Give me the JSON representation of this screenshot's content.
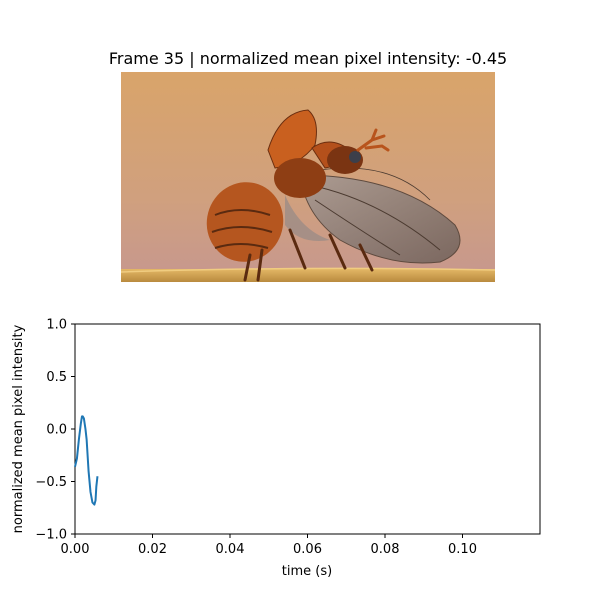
{
  "figure": {
    "title": "Frame 35 | normalized mean pixel intensity: -0.45"
  },
  "photo": {
    "subject": "beetle taking off, wings spread, on a wooden ledge",
    "colors": {
      "sky_top": "#d7a26a",
      "sky_bottom": "#c99a8f",
      "ledge": "#d7aa55",
      "shell": "#b5561f",
      "shell_dark": "#5a2a10",
      "wing": "#8c7e76"
    }
  },
  "chart_data": {
    "type": "line",
    "xlabel": "time (s)",
    "ylabel": "normalized mean pixel intensity",
    "xlim": [
      0,
      0.12
    ],
    "ylim": [
      -1.0,
      1.0
    ],
    "x_ticks": [
      0.0,
      0.02,
      0.04,
      0.06,
      0.08,
      0.1
    ],
    "x_tick_labels": [
      "0.00",
      "0.02",
      "0.04",
      "0.06",
      "0.08",
      "0.10"
    ],
    "y_ticks": [
      -1.0,
      -0.5,
      0.0,
      0.5,
      1.0
    ],
    "y_tick_labels": [
      "−1.0",
      "−0.5",
      "0.0",
      "0.5",
      "1.0"
    ],
    "grid": false,
    "series": [
      {
        "color": "#1f77b4",
        "x": [
          0.0,
          0.0005,
          0.001,
          0.0015,
          0.0018,
          0.002,
          0.0023,
          0.0027,
          0.003,
          0.0035,
          0.004,
          0.0045,
          0.005,
          0.0053,
          0.0055,
          0.0058
        ],
        "y": [
          -0.36,
          -0.28,
          -0.1,
          0.05,
          0.12,
          0.12,
          0.1,
          0.0,
          -0.1,
          -0.4,
          -0.6,
          -0.7,
          -0.72,
          -0.68,
          -0.55,
          -0.45
        ]
      }
    ]
  }
}
